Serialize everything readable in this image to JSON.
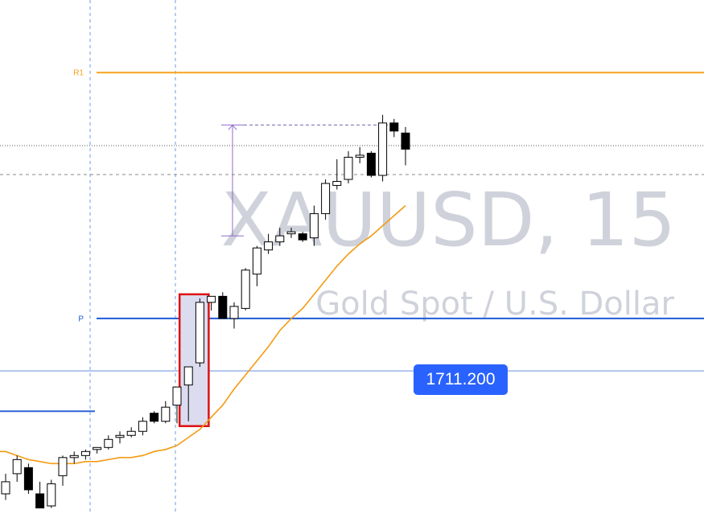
{
  "watermark": {
    "symbol": "XAUUSD, 15",
    "description": "Gold Spot / U.S. Dollar"
  },
  "price_tag": {
    "value": "1711.200",
    "color": "#2962ff"
  },
  "colors": {
    "resistance": "#f7a21b",
    "pivot": "#1e5bd8",
    "ma": "#f39c12",
    "highlight_border": "#dd1111",
    "highlight_fill": "#dcdcf0",
    "measure": "#8e6cc9",
    "bear_body": "#000000",
    "bull_body": "#ffffff"
  },
  "chart_data": {
    "type": "candlestick",
    "symbol": "XAUUSD",
    "timeframe": "15",
    "levels": [
      {
        "label": "R1",
        "price": 1726.0
      },
      {
        "label": "P",
        "price": 1713.8
      }
    ],
    "price_lines": [
      {
        "price": 1711.2
      },
      {
        "price": 1709.2
      }
    ],
    "ylim": [
      1704.1,
      1729.6
    ],
    "candles": [
      {
        "o": 1705.1,
        "h": 1706.1,
        "l": 1704.8,
        "c": 1705.7
      },
      {
        "o": 1706.1,
        "h": 1707.0,
        "l": 1705.7,
        "c": 1706.8
      },
      {
        "o": 1706.4,
        "h": 1706.6,
        "l": 1705.1,
        "c": 1705.3
      },
      {
        "o": 1705.1,
        "h": 1705.7,
        "l": 1704.4,
        "c": 1704.4
      },
      {
        "o": 1704.5,
        "h": 1705.8,
        "l": 1704.4,
        "c": 1705.6
      },
      {
        "o": 1706.0,
        "h": 1707.0,
        "l": 1705.5,
        "c": 1706.9
      },
      {
        "o": 1706.9,
        "h": 1707.2,
        "l": 1706.6,
        "c": 1707.0
      },
      {
        "o": 1707.0,
        "h": 1707.3,
        "l": 1706.8,
        "c": 1707.2
      },
      {
        "o": 1707.3,
        "h": 1707.4,
        "l": 1707.1,
        "c": 1707.4
      },
      {
        "o": 1707.4,
        "h": 1708.0,
        "l": 1707.3,
        "c": 1707.8
      },
      {
        "o": 1707.9,
        "h": 1708.2,
        "l": 1707.6,
        "c": 1708.0
      },
      {
        "o": 1708.0,
        "h": 1708.4,
        "l": 1707.9,
        "c": 1708.2
      },
      {
        "o": 1708.2,
        "h": 1708.9,
        "l": 1708.0,
        "c": 1708.7
      },
      {
        "o": 1709.1,
        "h": 1709.2,
        "l": 1708.6,
        "c": 1708.7
      },
      {
        "o": 1708.7,
        "h": 1709.7,
        "l": 1708.6,
        "c": 1709.4
      },
      {
        "o": 1709.5,
        "h": 1710.2,
        "l": 1708.6,
        "c": 1710.4
      },
      {
        "o": 1710.5,
        "h": 1711.3,
        "l": 1708.7,
        "c": 1711.4
      },
      {
        "o": 1711.6,
        "h": 1714.8,
        "l": 1711.4,
        "c": 1714.6
      },
      {
        "o": 1714.6,
        "h": 1714.9,
        "l": 1714.2,
        "c": 1714.9
      },
      {
        "o": 1714.9,
        "h": 1715.1,
        "l": 1713.8,
        "c": 1713.8
      },
      {
        "o": 1713.8,
        "h": 1714.6,
        "l": 1713.3,
        "c": 1714.4
      },
      {
        "o": 1714.3,
        "h": 1716.3,
        "l": 1714.2,
        "c": 1716.2
      },
      {
        "o": 1716.0,
        "h": 1717.4,
        "l": 1715.4,
        "c": 1717.3
      },
      {
        "o": 1717.2,
        "h": 1718.0,
        "l": 1717.0,
        "c": 1717.6
      },
      {
        "o": 1717.6,
        "h": 1718.3,
        "l": 1717.4,
        "c": 1717.9
      },
      {
        "o": 1718.0,
        "h": 1718.3,
        "l": 1717.8,
        "c": 1718.1
      },
      {
        "o": 1718.0,
        "h": 1718.1,
        "l": 1717.6,
        "c": 1717.7
      },
      {
        "o": 1717.8,
        "h": 1719.4,
        "l": 1717.4,
        "c": 1719.0
      },
      {
        "o": 1719.0,
        "h": 1720.7,
        "l": 1718.7,
        "c": 1720.5
      },
      {
        "o": 1720.4,
        "h": 1721.7,
        "l": 1720.2,
        "c": 1720.6
      },
      {
        "o": 1720.7,
        "h": 1722.1,
        "l": 1720.5,
        "c": 1721.8
      },
      {
        "o": 1721.8,
        "h": 1722.3,
        "l": 1721.5,
        "c": 1721.9
      },
      {
        "o": 1722.0,
        "h": 1722.1,
        "l": 1720.8,
        "c": 1720.9
      },
      {
        "o": 1720.9,
        "h": 1723.9,
        "l": 1720.6,
        "c": 1723.5
      },
      {
        "o": 1723.5,
        "h": 1723.7,
        "l": 1722.8,
        "c": 1723.1
      },
      {
        "o": 1723.0,
        "h": 1723.3,
        "l": 1721.4,
        "c": 1722.2
      }
    ],
    "moving_average": [
      1707.2,
      1707.0,
      1706.8,
      1706.7,
      1706.6,
      1706.6,
      1706.6,
      1706.7,
      1706.7,
      1706.8,
      1706.9,
      1706.9,
      1707.0,
      1707.2,
      1707.3,
      1707.5,
      1707.9,
      1708.3,
      1708.9,
      1709.5,
      1710.3,
      1711.0,
      1711.7,
      1712.4,
      1713.2,
      1713.8,
      1714.3,
      1715.0,
      1715.7,
      1716.4,
      1717.0,
      1717.5,
      1717.9,
      1718.4,
      1718.9,
      1719.4
    ],
    "highlight": {
      "from_candle": 16,
      "to_candle": 17
    },
    "measure": {
      "from_price": 1717.9,
      "to_price": 1723.4
    }
  }
}
